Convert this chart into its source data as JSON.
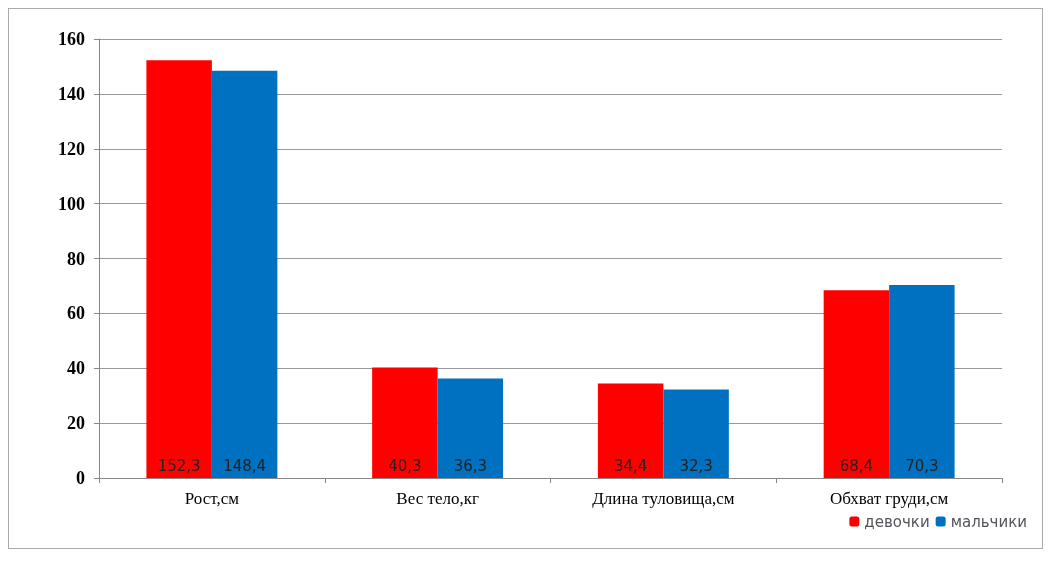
{
  "chart_data": {
    "type": "bar",
    "categories": [
      "Рост,см",
      "Вес тело,кг",
      "Длина туловища,см",
      "Обхват груди,см"
    ],
    "series": [
      {
        "name": "девочки",
        "color": "#ff0000",
        "values": [
          152.3,
          40.3,
          34.4,
          68.4
        ],
        "value_labels": [
          "152,3",
          "40,3",
          "34,4",
          "68,4"
        ]
      },
      {
        "name": "мальчики",
        "color": "#0070c0",
        "values": [
          148.4,
          36.3,
          32.3,
          70.3
        ],
        "value_labels": [
          "148,4",
          "36,3",
          "32,3",
          "70,3"
        ]
      }
    ],
    "ylim": [
      0,
      160
    ],
    "yticks": [
      0,
      20,
      40,
      60,
      80,
      100,
      120,
      140,
      160
    ],
    "grid": "y",
    "legend": "bottom right"
  }
}
